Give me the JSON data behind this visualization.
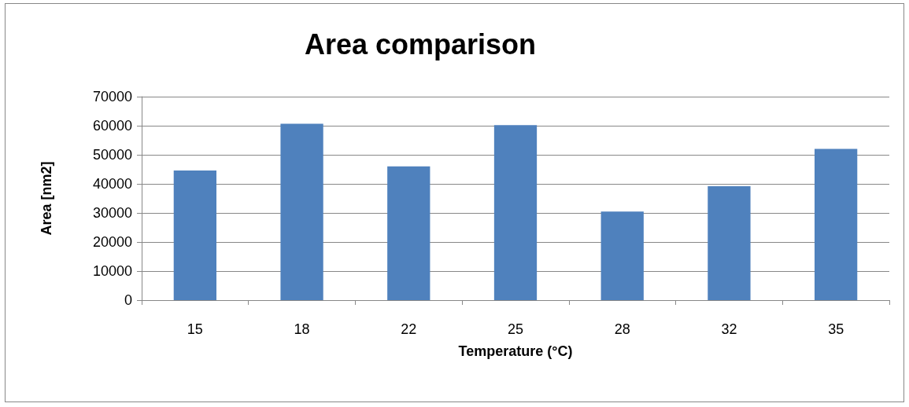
{
  "chart_data": {
    "type": "bar",
    "title": "Area comparison",
    "xlabel": "Temperature (°C)",
    "ylabel": "Area [nm2]",
    "categories": [
      "15",
      "18",
      "22",
      "25",
      "28",
      "32",
      "35"
    ],
    "values": [
      44600,
      60700,
      46000,
      60200,
      30500,
      39200,
      52000
    ],
    "color": "#4f81bd",
    "ylim": [
      0,
      70000
    ],
    "yticks": [
      0,
      10000,
      20000,
      30000,
      40000,
      50000,
      60000,
      70000
    ],
    "grid": "y"
  }
}
